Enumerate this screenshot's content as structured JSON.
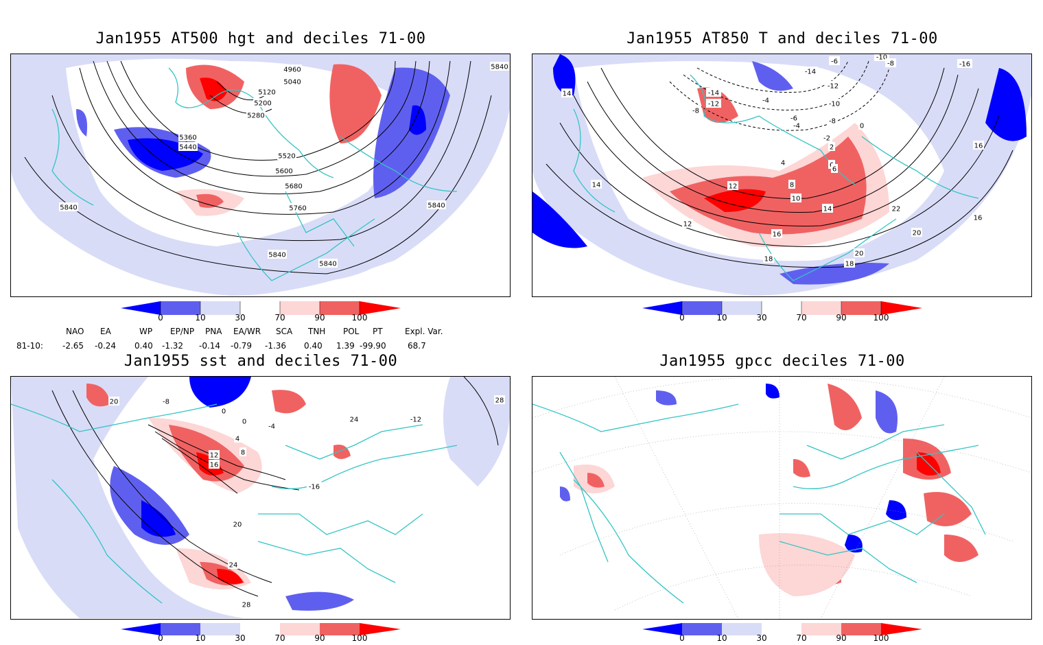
{
  "panels": [
    {
      "id": "p1",
      "title": "Jan1955 AT500 hgt and deciles 71-00",
      "contour_labels": [
        "4960",
        "5040",
        "5120",
        "5200",
        "5280",
        "5360",
        "5440",
        "5520",
        "5600",
        "5680",
        "5760",
        "5840",
        "5840",
        "5840",
        "5840",
        "5840"
      ]
    },
    {
      "id": "p2",
      "title": "Jan1955 AT850 T and deciles 71-00",
      "contour_labels": [
        "-10",
        "-8",
        "-14",
        "-12",
        "-10",
        "-8",
        "-6",
        "-4",
        "-2",
        "0",
        "2",
        "4",
        "6",
        "8",
        "10",
        "12",
        "14",
        "16",
        "18",
        "20",
        "22",
        "-14",
        "-12",
        "-8",
        "-6",
        "-4",
        "-16",
        "14",
        "16",
        "12",
        "16",
        "18",
        "20",
        "14",
        "6"
      ]
    },
    {
      "id": "p3",
      "title": "Jan1955 sst and deciles 71-00",
      "contour_labels": [
        "20",
        "0",
        "0",
        "4",
        "8",
        "12",
        "16",
        "20",
        "24",
        "28",
        "-4",
        "-16",
        "28",
        "24",
        "-12",
        "-8"
      ]
    },
    {
      "id": "p4",
      "title": "Jan1955 gpcc deciles 71-00",
      "contour_labels": []
    }
  ],
  "colorbar": {
    "ticks": [
      "0",
      "10",
      "30",
      "70",
      "90",
      "100"
    ],
    "colors": [
      "#0000ff",
      "#5f5fef",
      "#d9dcf7",
      "#ffffff",
      "#fdd6d6",
      "#f06262",
      "#ff0000"
    ]
  },
  "indices": {
    "row_label": "81-10:",
    "headers": [
      "NAO",
      "EA",
      "WP",
      "EP/NP",
      "PNA",
      "EA/WR",
      "SCA",
      "TNH",
      "POL",
      "PT",
      "Expl. Var."
    ],
    "values": [
      "-2.65",
      "-0.24",
      "0.40",
      "-1.32",
      "-0.14",
      "-0.79",
      "-1.36",
      "0.40",
      "1.39",
      "-99.90",
      "68.7"
    ]
  }
}
